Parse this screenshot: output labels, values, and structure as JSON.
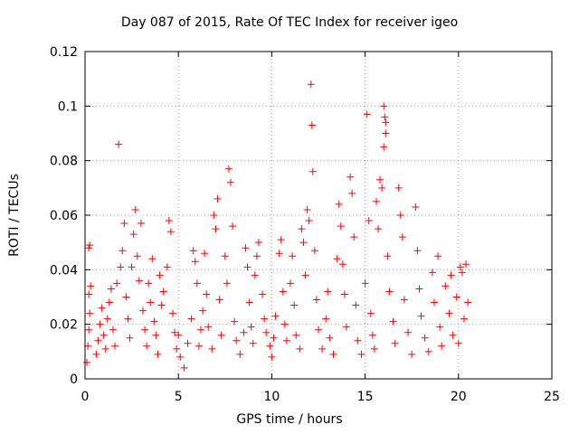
{
  "chart_data": {
    "type": "scatter",
    "title": "Day 087 of 2015, Rate Of TEC Index for receiver igeo",
    "xlabel": "GPS time / hours",
    "ylabel": "ROTI / TECUs",
    "xlim": [
      0,
      25
    ],
    "ylim": [
      0,
      0.12
    ],
    "xticks": [
      "0",
      "5",
      "10",
      "15",
      "20",
      "25"
    ],
    "yticks": [
      "0",
      "0.02",
      "0.04",
      "0.06",
      "0.08",
      "0.1",
      "0.12"
    ],
    "grid": true,
    "marker": "+",
    "color": "#ff0000",
    "series": [
      {
        "points": [
          [
            0.1,
            0.006
          ],
          [
            0.15,
            0.012
          ],
          [
            0.2,
            0.018
          ],
          [
            0.25,
            0.024
          ],
          [
            0.2,
            0.031
          ],
          [
            0.3,
            0.034
          ],
          [
            0.2,
            0.048
          ],
          [
            0.25,
            0.049
          ],
          [
            0.6,
            0.009
          ],
          [
            0.7,
            0.014
          ],
          [
            0.8,
            0.02
          ],
          [
            0.9,
            0.026
          ],
          [
            1.0,
            0.016
          ],
          [
            1.1,
            0.011
          ],
          [
            1.2,
            0.022
          ],
          [
            1.3,
            0.028
          ],
          [
            1.4,
            0.033
          ],
          [
            1.5,
            0.018
          ],
          [
            1.6,
            0.012
          ],
          [
            1.7,
            0.035
          ],
          [
            1.8,
            0.086
          ],
          [
            1.9,
            0.041
          ],
          [
            2.0,
            0.047
          ],
          [
            2.1,
            0.057
          ],
          [
            2.2,
            0.03
          ],
          [
            2.3,
            0.022
          ],
          [
            2.4,
            0.015
          ],
          [
            2.5,
            0.041
          ],
          [
            2.6,
            0.053
          ],
          [
            2.7,
            0.062
          ],
          [
            2.8,
            0.045
          ],
          [
            2.9,
            0.036
          ],
          [
            3.0,
            0.057
          ],
          [
            3.1,
            0.025
          ],
          [
            3.2,
            0.018
          ],
          [
            3.3,
            0.012
          ],
          [
            3.4,
            0.035
          ],
          [
            3.5,
            0.028
          ],
          [
            3.6,
            0.044
          ],
          [
            3.7,
            0.021
          ],
          [
            3.8,
            0.016
          ],
          [
            3.9,
            0.009
          ],
          [
            4.0,
            0.038
          ],
          [
            4.1,
            0.027
          ],
          [
            4.2,
            0.032
          ],
          [
            4.4,
            0.041
          ],
          [
            4.5,
            0.058
          ],
          [
            4.6,
            0.054
          ],
          [
            4.7,
            0.024
          ],
          [
            4.8,
            0.017
          ],
          [
            4.9,
            0.011
          ],
          [
            5.0,
            0.016
          ],
          [
            5.1,
            0.008
          ],
          [
            5.3,
            0.004
          ],
          [
            5.5,
            0.013
          ],
          [
            5.7,
            0.022
          ],
          [
            5.8,
            0.047
          ],
          [
            5.9,
            0.043
          ],
          [
            6.0,
            0.035
          ],
          [
            6.1,
            0.012
          ],
          [
            6.2,
            0.018
          ],
          [
            6.3,
            0.025
          ],
          [
            6.4,
            0.046
          ],
          [
            6.5,
            0.031
          ],
          [
            6.6,
            0.019
          ],
          [
            6.8,
            0.011
          ],
          [
            6.9,
            0.06
          ],
          [
            7.0,
            0.055
          ],
          [
            7.1,
            0.066
          ],
          [
            7.2,
            0.029
          ],
          [
            7.3,
            0.016
          ],
          [
            7.5,
            0.045
          ],
          [
            7.6,
            0.035
          ],
          [
            7.7,
            0.077
          ],
          [
            7.8,
            0.072
          ],
          [
            7.9,
            0.056
          ],
          [
            8.0,
            0.021
          ],
          [
            8.1,
            0.014
          ],
          [
            8.3,
            0.009
          ],
          [
            8.5,
            0.017
          ],
          [
            8.6,
            0.048
          ],
          [
            8.7,
            0.041
          ],
          [
            8.8,
            0.028
          ],
          [
            8.9,
            0.019
          ],
          [
            9.0,
            0.013
          ],
          [
            9.1,
            0.038
          ],
          [
            9.2,
            0.045
          ],
          [
            9.3,
            0.05
          ],
          [
            9.5,
            0.031
          ],
          [
            9.6,
            0.022
          ],
          [
            9.7,
            0.017
          ],
          [
            9.9,
            0.012
          ],
          [
            10.0,
            0.008
          ],
          [
            10.1,
            0.015
          ],
          [
            10.2,
            0.023
          ],
          [
            10.4,
            0.046
          ],
          [
            10.5,
            0.051
          ],
          [
            10.6,
            0.032
          ],
          [
            10.7,
            0.02
          ],
          [
            10.8,
            0.014
          ],
          [
            11.0,
            0.035
          ],
          [
            11.1,
            0.045
          ],
          [
            11.2,
            0.027
          ],
          [
            11.3,
            0.016
          ],
          [
            11.5,
            0.011
          ],
          [
            11.6,
            0.055
          ],
          [
            11.7,
            0.05
          ],
          [
            11.8,
            0.038
          ],
          [
            11.9,
            0.062
          ],
          [
            12.0,
            0.058
          ],
          [
            12.1,
            0.108
          ],
          [
            12.15,
            0.093
          ],
          [
            12.2,
            0.076
          ],
          [
            12.3,
            0.047
          ],
          [
            12.4,
            0.029
          ],
          [
            12.5,
            0.018
          ],
          [
            12.7,
            0.011
          ],
          [
            12.9,
            0.022
          ],
          [
            13.0,
            0.032
          ],
          [
            13.1,
            0.015
          ],
          [
            13.3,
            0.009
          ],
          [
            13.5,
            0.044
          ],
          [
            13.6,
            0.064
          ],
          [
            13.7,
            0.056
          ],
          [
            13.8,
            0.042
          ],
          [
            13.9,
            0.031
          ],
          [
            14.0,
            0.019
          ],
          [
            14.2,
            0.074
          ],
          [
            14.3,
            0.068
          ],
          [
            14.4,
            0.052
          ],
          [
            14.5,
            0.027
          ],
          [
            14.6,
            0.014
          ],
          [
            14.8,
            0.009
          ],
          [
            15.0,
            0.035
          ],
          [
            15.1,
            0.097
          ],
          [
            15.2,
            0.058
          ],
          [
            15.3,
            0.024
          ],
          [
            15.4,
            0.016
          ],
          [
            15.5,
            0.011
          ],
          [
            15.6,
            0.065
          ],
          [
            15.7,
            0.055
          ],
          [
            15.8,
            0.073
          ],
          [
            15.9,
            0.07
          ],
          [
            16.0,
            0.1
          ],
          [
            16.05,
            0.096
          ],
          [
            16.1,
            0.094
          ],
          [
            16.1,
            0.09
          ],
          [
            16.0,
            0.085
          ],
          [
            16.2,
            0.045
          ],
          [
            16.3,
            0.032
          ],
          [
            16.5,
            0.021
          ],
          [
            16.6,
            0.013
          ],
          [
            16.8,
            0.07
          ],
          [
            16.9,
            0.06
          ],
          [
            17.0,
            0.052
          ],
          [
            17.1,
            0.029
          ],
          [
            17.3,
            0.017
          ],
          [
            17.5,
            0.009
          ],
          [
            17.7,
            0.063
          ],
          [
            17.8,
            0.047
          ],
          [
            17.9,
            0.033
          ],
          [
            18.0,
            0.023
          ],
          [
            18.2,
            0.015
          ],
          [
            18.4,
            0.01
          ],
          [
            18.6,
            0.039
          ],
          [
            18.7,
            0.028
          ],
          [
            18.9,
            0.045
          ],
          [
            19.0,
            0.019
          ],
          [
            19.1,
            0.012
          ],
          [
            19.3,
            0.034
          ],
          [
            19.5,
            0.024
          ],
          [
            19.6,
            0.038
          ],
          [
            19.7,
            0.016
          ],
          [
            19.9,
            0.03
          ],
          [
            20.0,
            0.013
          ],
          [
            20.1,
            0.041
          ],
          [
            20.2,
            0.039
          ],
          [
            20.3,
            0.022
          ],
          [
            20.4,
            0.042
          ],
          [
            20.5,
            0.028
          ]
        ]
      }
    ]
  }
}
